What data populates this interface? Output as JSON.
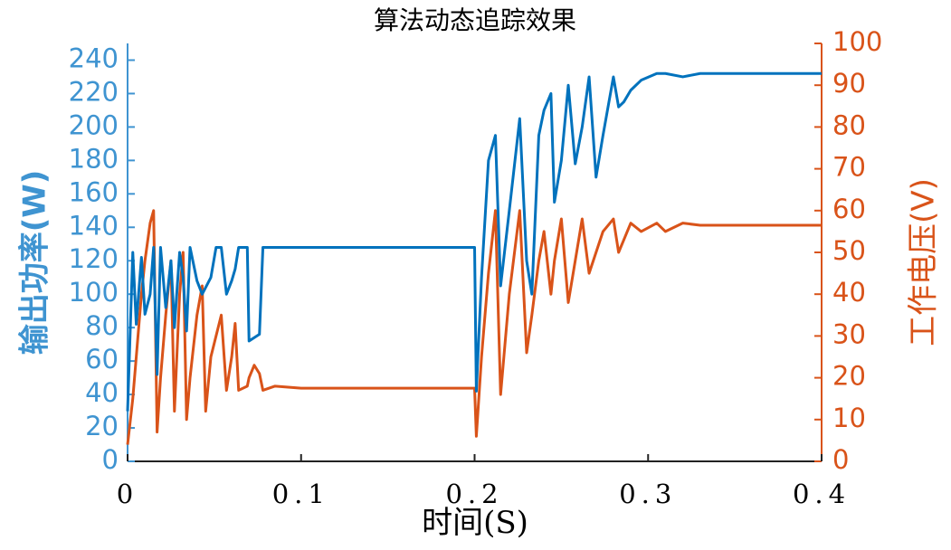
{
  "chart_data": {
    "type": "line",
    "title": "算法动态追踪效果",
    "x_label": "时间(S)",
    "y_label": "输出功率(W)",
    "y2_label": "工作电压(V)",
    "x": [
      0,
      0.003,
      0.005,
      0.008,
      0.01,
      0.013,
      0.015,
      0.017,
      0.019,
      0.022,
      0.025,
      0.027,
      0.03,
      0.032,
      0.034,
      0.036,
      0.04,
      0.043,
      0.045,
      0.048,
      0.051,
      0.054,
      0.057,
      0.06,
      0.062,
      0.064,
      0.069,
      0.07,
      0.073,
      0.076,
      0.078,
      0.085,
      0.1,
      0.2,
      0.201,
      0.204,
      0.208,
      0.212,
      0.215,
      0.22,
      0.226,
      0.23,
      0.233,
      0.237,
      0.24,
      0.244,
      0.246,
      0.25,
      0.254,
      0.258,
      0.262,
      0.266,
      0.27,
      0.274,
      0.28,
      0.283,
      0.286,
      0.29,
      0.296,
      0.305,
      0.31,
      0.32,
      0.33,
      0.4
    ],
    "series": [
      {
        "name": "输出功率",
        "color": "#0072bd",
        "axis": "y",
        "values": [
          30,
          125,
          82,
          122,
          88,
          100,
          128,
          52,
          128,
          92,
          120,
          80,
          125,
          110,
          78,
          128,
          108,
          100,
          104,
          110,
          128,
          128,
          100,
          108,
          115,
          128,
          128,
          72,
          74,
          76,
          128,
          128,
          128,
          128,
          42,
          110,
          180,
          195,
          105,
          150,
          205,
          120,
          100,
          195,
          210,
          220,
          155,
          180,
          225,
          178,
          200,
          230,
          170,
          195,
          230,
          212,
          215,
          222,
          228,
          232,
          232,
          230,
          232,
          232
        ]
      },
      {
        "name": "工作电压",
        "color": "#d95319",
        "axis": "y2",
        "values": [
          4,
          15,
          25,
          40,
          48,
          57,
          60,
          7,
          20,
          35,
          48,
          12,
          40,
          50,
          10,
          20,
          35,
          42,
          12,
          25,
          30,
          35,
          17,
          25,
          33,
          17,
          18,
          20,
          23,
          21,
          17,
          18,
          17.5,
          17.5,
          6,
          25,
          45,
          60,
          16,
          40,
          60,
          26,
          35,
          48,
          55,
          40,
          48,
          58,
          38,
          48,
          58,
          45,
          50,
          55,
          58,
          50,
          53,
          57,
          55,
          57,
          55,
          57,
          56.5,
          56.5
        ]
      }
    ],
    "xlim": [
      0,
      0.4
    ],
    "xticks": [
      0,
      0.1,
      0.2,
      0.3,
      0.4
    ],
    "ylim": [
      0,
      250
    ],
    "yticks": [
      0,
      20,
      40,
      60,
      80,
      100,
      120,
      140,
      160,
      180,
      200,
      220,
      240
    ],
    "y2lim": [
      0,
      100
    ],
    "y2ticks": [
      0,
      10,
      20,
      30,
      40,
      50,
      60,
      70,
      80,
      90,
      100
    ],
    "y_axis_color": "#3f94d1",
    "y2_axis_color": "#d95319",
    "grid": false
  }
}
